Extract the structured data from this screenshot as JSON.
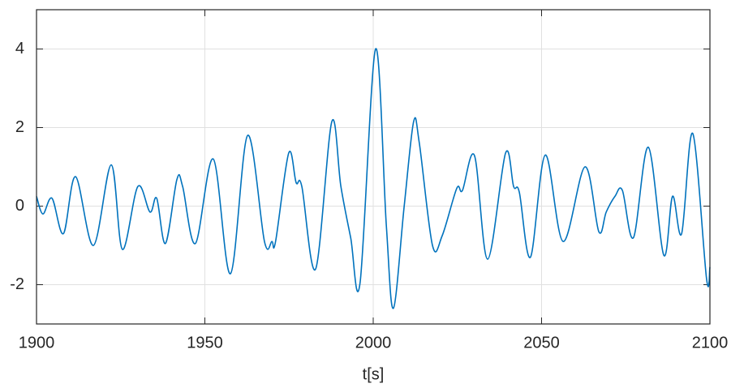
{
  "chart_data": {
    "type": "line",
    "x_label": "t[s]",
    "x": [
      1900,
      1901.9,
      1904.6,
      1908,
      1911.6,
      1916.9,
      1922.2,
      1925.5,
      1930.1,
      1933.7,
      1935.7,
      1938.3,
      1941.7,
      1943.4,
      1947.2,
      1952.5,
      1957.6,
      1962.7,
      1967.7,
      1969.9,
      1971,
      1974.9,
      1977.1,
      1978.8,
      1982.9,
      1987.7,
      1990.4,
      1993.3,
      1996.1,
      2000.7,
      2003.9,
      2006,
      2009.2,
      2012,
      2013.7,
      2017.6,
      2020.5,
      2024.8,
      2026.5,
      2030.1,
      2034,
      2039.3,
      2041.7,
      2043.4,
      2046.7,
      2051.1,
      2056.4,
      2062.9,
      2067,
      2069.2,
      2071.8,
      2074,
      2077.3,
      2081.7,
      2086.3,
      2088.9,
      2091.6,
      2094.9,
      2099,
      2100
    ],
    "series": [
      {
        "color": "#0072bd",
        "values": [
          0.25,
          -0.2,
          0.2,
          -0.7,
          0.75,
          -1.0,
          1.05,
          -1.1,
          0.5,
          -0.15,
          0.2,
          -0.95,
          0.68,
          0.5,
          -0.95,
          1.2,
          -1.72,
          1.8,
          -0.9,
          -0.9,
          -0.9,
          1.35,
          0.6,
          0.5,
          -1.6,
          2.15,
          0.5,
          -0.8,
          -1.95,
          4.0,
          -0.5,
          -2.6,
          0.0,
          2.15,
          1.6,
          -1.0,
          -0.75,
          0.45,
          0.4,
          1.28,
          -1.35,
          1.35,
          0.5,
          0.35,
          -1.3,
          1.3,
          -0.9,
          1.0,
          -0.65,
          -0.15,
          0.25,
          0.4,
          -0.8,
          1.5,
          -1.25,
          0.25,
          -0.7,
          1.85,
          -1.85,
          -1.55
        ]
      }
    ],
    "xlim": [
      1900,
      2100
    ],
    "xticks": [
      1900,
      1950,
      2000,
      2050,
      2100
    ],
    "ylim": [
      -3,
      5
    ],
    "yticks": [
      -2,
      0,
      2,
      4
    ],
    "grid": true
  }
}
